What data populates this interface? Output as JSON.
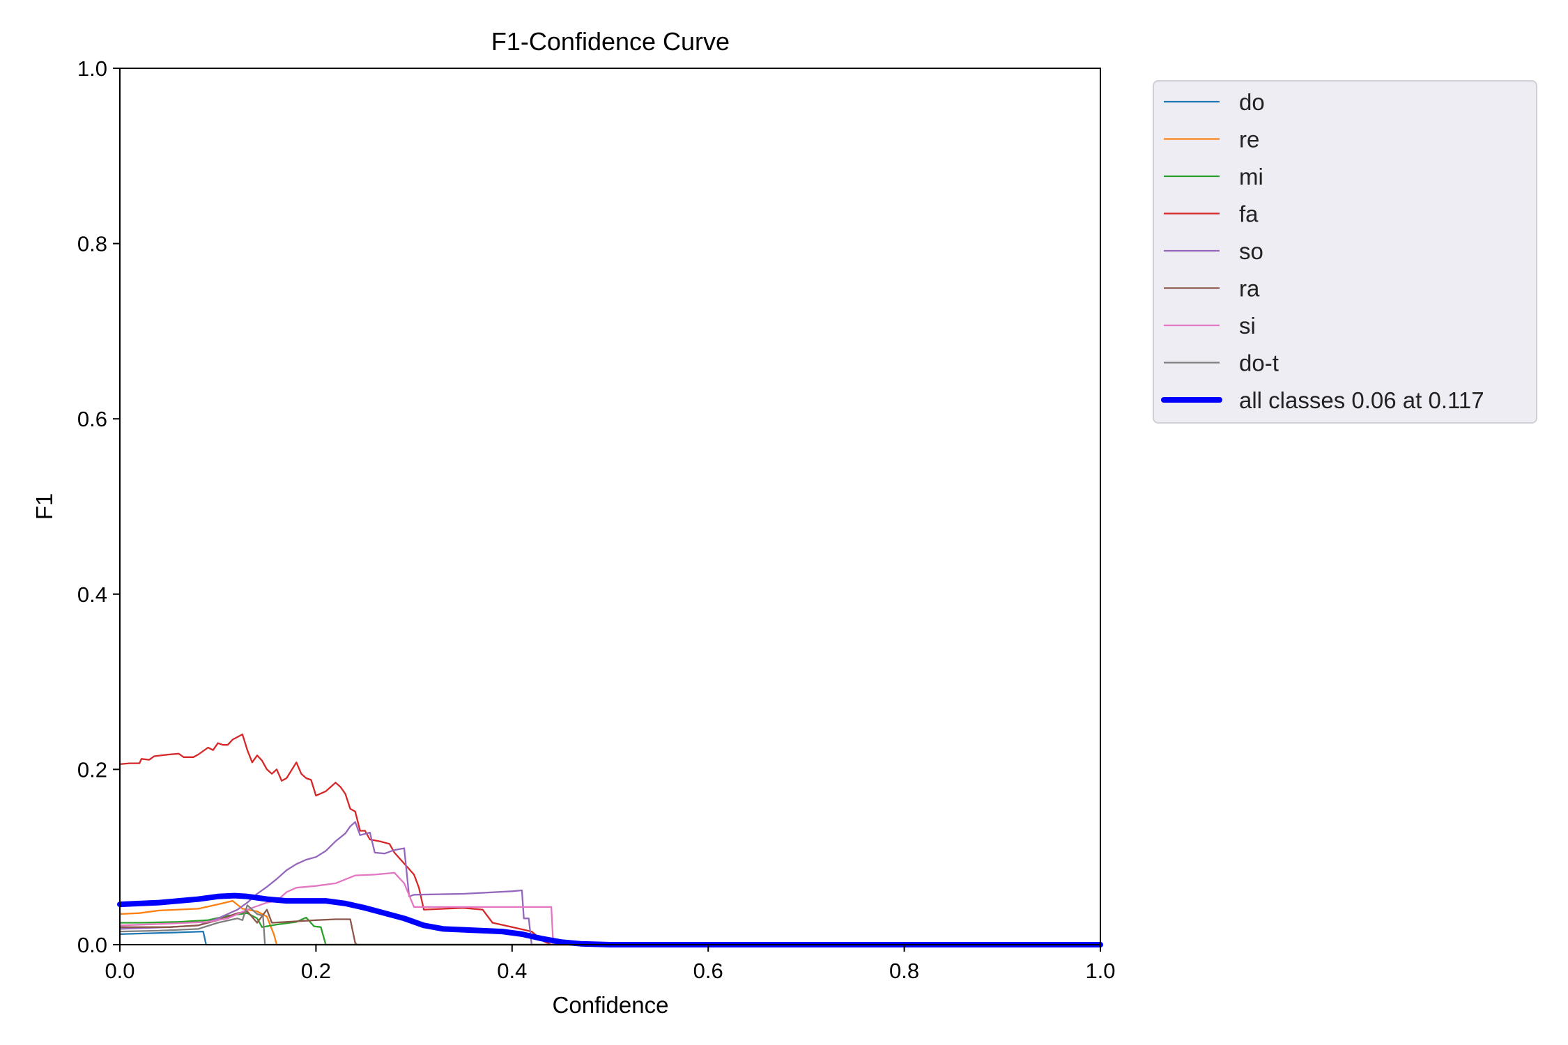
{
  "chart_data": {
    "type": "line",
    "title": "F1-Confidence Curve",
    "xlabel": "Confidence",
    "ylabel": "F1",
    "xlim": [
      0,
      1
    ],
    "ylim": [
      0,
      1
    ],
    "xticks": [
      "0.0",
      "0.2",
      "0.4",
      "0.6",
      "0.8",
      "1.0"
    ],
    "yticks": [
      "0.0",
      "0.2",
      "0.4",
      "0.6",
      "0.8",
      "1.0"
    ],
    "grid": false,
    "legend_placement": "outside-top-right",
    "series": [
      {
        "name": "do",
        "color": "#1f77b4",
        "points": [
          [
            0.0,
            0.012
          ],
          [
            0.03,
            0.013
          ],
          [
            0.06,
            0.014
          ],
          [
            0.085,
            0.015
          ],
          [
            0.088,
            0.0
          ],
          [
            1.0,
            0.0
          ]
        ]
      },
      {
        "name": "re",
        "color": "#ff7f0e",
        "points": [
          [
            0.0,
            0.035
          ],
          [
            0.02,
            0.036
          ],
          [
            0.04,
            0.039
          ],
          [
            0.08,
            0.041
          ],
          [
            0.1,
            0.046
          ],
          [
            0.115,
            0.05
          ],
          [
            0.125,
            0.041
          ],
          [
            0.14,
            0.038
          ],
          [
            0.15,
            0.032
          ],
          [
            0.157,
            0.012
          ],
          [
            0.16,
            0.0
          ],
          [
            1.0,
            0.0
          ]
        ]
      },
      {
        "name": "mi",
        "color": "#2ca02c",
        "points": [
          [
            0.0,
            0.025
          ],
          [
            0.02,
            0.025
          ],
          [
            0.06,
            0.026
          ],
          [
            0.09,
            0.028
          ],
          [
            0.11,
            0.033
          ],
          [
            0.13,
            0.036
          ],
          [
            0.14,
            0.03
          ],
          [
            0.145,
            0.02
          ],
          [
            0.16,
            0.023
          ],
          [
            0.18,
            0.026
          ],
          [
            0.19,
            0.031
          ],
          [
            0.198,
            0.021
          ],
          [
            0.205,
            0.02
          ],
          [
            0.21,
            0.0
          ],
          [
            1.0,
            0.0
          ]
        ]
      },
      {
        "name": "fa",
        "color": "#d62728",
        "points": [
          [
            0.0,
            0.206
          ],
          [
            0.01,
            0.207
          ],
          [
            0.02,
            0.207
          ],
          [
            0.022,
            0.212
          ],
          [
            0.03,
            0.211
          ],
          [
            0.035,
            0.215
          ],
          [
            0.05,
            0.217
          ],
          [
            0.06,
            0.218
          ],
          [
            0.065,
            0.214
          ],
          [
            0.075,
            0.214
          ],
          [
            0.08,
            0.217
          ],
          [
            0.09,
            0.225
          ],
          [
            0.095,
            0.222
          ],
          [
            0.1,
            0.23
          ],
          [
            0.105,
            0.228
          ],
          [
            0.11,
            0.228
          ],
          [
            0.115,
            0.234
          ],
          [
            0.12,
            0.237
          ],
          [
            0.125,
            0.24
          ],
          [
            0.13,
            0.222
          ],
          [
            0.135,
            0.208
          ],
          [
            0.14,
            0.216
          ],
          [
            0.145,
            0.21
          ],
          [
            0.15,
            0.2
          ],
          [
            0.155,
            0.195
          ],
          [
            0.16,
            0.2
          ],
          [
            0.165,
            0.187
          ],
          [
            0.17,
            0.19
          ],
          [
            0.18,
            0.208
          ],
          [
            0.185,
            0.195
          ],
          [
            0.19,
            0.19
          ],
          [
            0.195,
            0.188
          ],
          [
            0.2,
            0.17
          ],
          [
            0.21,
            0.175
          ],
          [
            0.215,
            0.18
          ],
          [
            0.22,
            0.185
          ],
          [
            0.225,
            0.18
          ],
          [
            0.23,
            0.172
          ],
          [
            0.235,
            0.155
          ],
          [
            0.24,
            0.152
          ],
          [
            0.245,
            0.13
          ],
          [
            0.25,
            0.13
          ],
          [
            0.255,
            0.12
          ],
          [
            0.265,
            0.118
          ],
          [
            0.275,
            0.115
          ],
          [
            0.28,
            0.105
          ],
          [
            0.3,
            0.08
          ],
          [
            0.305,
            0.065
          ],
          [
            0.31,
            0.04
          ],
          [
            0.35,
            0.042
          ],
          [
            0.37,
            0.04
          ],
          [
            0.38,
            0.025
          ],
          [
            0.4,
            0.02
          ],
          [
            0.42,
            0.015
          ],
          [
            0.432,
            0.004
          ],
          [
            0.44,
            0.0
          ],
          [
            1.0,
            0.0
          ]
        ]
      },
      {
        "name": "so",
        "color": "#9467bd",
        "points": [
          [
            0.0,
            0.018
          ],
          [
            0.05,
            0.02
          ],
          [
            0.08,
            0.022
          ],
          [
            0.1,
            0.03
          ],
          [
            0.12,
            0.04
          ],
          [
            0.13,
            0.048
          ],
          [
            0.14,
            0.058
          ],
          [
            0.15,
            0.066
          ],
          [
            0.16,
            0.075
          ],
          [
            0.17,
            0.085
          ],
          [
            0.18,
            0.092
          ],
          [
            0.19,
            0.097
          ],
          [
            0.2,
            0.1
          ],
          [
            0.21,
            0.107
          ],
          [
            0.22,
            0.118
          ],
          [
            0.23,
            0.127
          ],
          [
            0.235,
            0.135
          ],
          [
            0.24,
            0.14
          ],
          [
            0.245,
            0.125
          ],
          [
            0.255,
            0.128
          ],
          [
            0.26,
            0.105
          ],
          [
            0.27,
            0.104
          ],
          [
            0.28,
            0.108
          ],
          [
            0.29,
            0.11
          ],
          [
            0.295,
            0.055
          ],
          [
            0.3,
            0.057
          ],
          [
            0.35,
            0.058
          ],
          [
            0.4,
            0.061
          ],
          [
            0.41,
            0.062
          ],
          [
            0.412,
            0.03
          ],
          [
            0.417,
            0.03
          ],
          [
            0.42,
            0.0
          ],
          [
            1.0,
            0.0
          ]
        ]
      },
      {
        "name": "ra",
        "color": "#8c564b",
        "points": [
          [
            0.0,
            0.02
          ],
          [
            0.05,
            0.02
          ],
          [
            0.08,
            0.022
          ],
          [
            0.1,
            0.028
          ],
          [
            0.11,
            0.032
          ],
          [
            0.12,
            0.036
          ],
          [
            0.13,
            0.038
          ],
          [
            0.14,
            0.025
          ],
          [
            0.15,
            0.04
          ],
          [
            0.155,
            0.025
          ],
          [
            0.17,
            0.026
          ],
          [
            0.2,
            0.028
          ],
          [
            0.22,
            0.029
          ],
          [
            0.235,
            0.029
          ],
          [
            0.24,
            0.002
          ],
          [
            0.242,
            0.0
          ],
          [
            1.0,
            0.0
          ]
        ]
      },
      {
        "name": "si",
        "color": "#e377c2",
        "points": [
          [
            0.0,
            0.022
          ],
          [
            0.05,
            0.024
          ],
          [
            0.09,
            0.026
          ],
          [
            0.11,
            0.03
          ],
          [
            0.13,
            0.04
          ],
          [
            0.15,
            0.048
          ],
          [
            0.16,
            0.05
          ],
          [
            0.17,
            0.06
          ],
          [
            0.18,
            0.065
          ],
          [
            0.2,
            0.067
          ],
          [
            0.22,
            0.07
          ],
          [
            0.24,
            0.079
          ],
          [
            0.26,
            0.08
          ],
          [
            0.28,
            0.082
          ],
          [
            0.29,
            0.07
          ],
          [
            0.3,
            0.043
          ],
          [
            0.35,
            0.043
          ],
          [
            0.4,
            0.043
          ],
          [
            0.44,
            0.043
          ],
          [
            0.442,
            0.0
          ],
          [
            1.0,
            0.0
          ]
        ]
      },
      {
        "name": "do-t",
        "color": "#7f7f7f",
        "points": [
          [
            0.0,
            0.015
          ],
          [
            0.04,
            0.016
          ],
          [
            0.08,
            0.018
          ],
          [
            0.1,
            0.025
          ],
          [
            0.12,
            0.03
          ],
          [
            0.125,
            0.028
          ],
          [
            0.13,
            0.045
          ],
          [
            0.14,
            0.035
          ],
          [
            0.146,
            0.033
          ],
          [
            0.148,
            0.0
          ],
          [
            1.0,
            0.0
          ]
        ]
      },
      {
        "name": "all classes 0.06 at 0.117",
        "color": "#0000ff",
        "thick": true,
        "points": [
          [
            0.0,
            0.046
          ],
          [
            0.02,
            0.047
          ],
          [
            0.04,
            0.048
          ],
          [
            0.06,
            0.05
          ],
          [
            0.08,
            0.052
          ],
          [
            0.1,
            0.055
          ],
          [
            0.117,
            0.056
          ],
          [
            0.13,
            0.055
          ],
          [
            0.15,
            0.052
          ],
          [
            0.17,
            0.05
          ],
          [
            0.19,
            0.05
          ],
          [
            0.21,
            0.05
          ],
          [
            0.23,
            0.047
          ],
          [
            0.25,
            0.042
          ],
          [
            0.27,
            0.036
          ],
          [
            0.29,
            0.03
          ],
          [
            0.31,
            0.022
          ],
          [
            0.33,
            0.018
          ],
          [
            0.35,
            0.017
          ],
          [
            0.37,
            0.016
          ],
          [
            0.39,
            0.015
          ],
          [
            0.41,
            0.012
          ],
          [
            0.43,
            0.007
          ],
          [
            0.45,
            0.003
          ],
          [
            0.47,
            0.001
          ],
          [
            0.5,
            0.0
          ],
          [
            1.0,
            0.0
          ]
        ]
      }
    ]
  }
}
